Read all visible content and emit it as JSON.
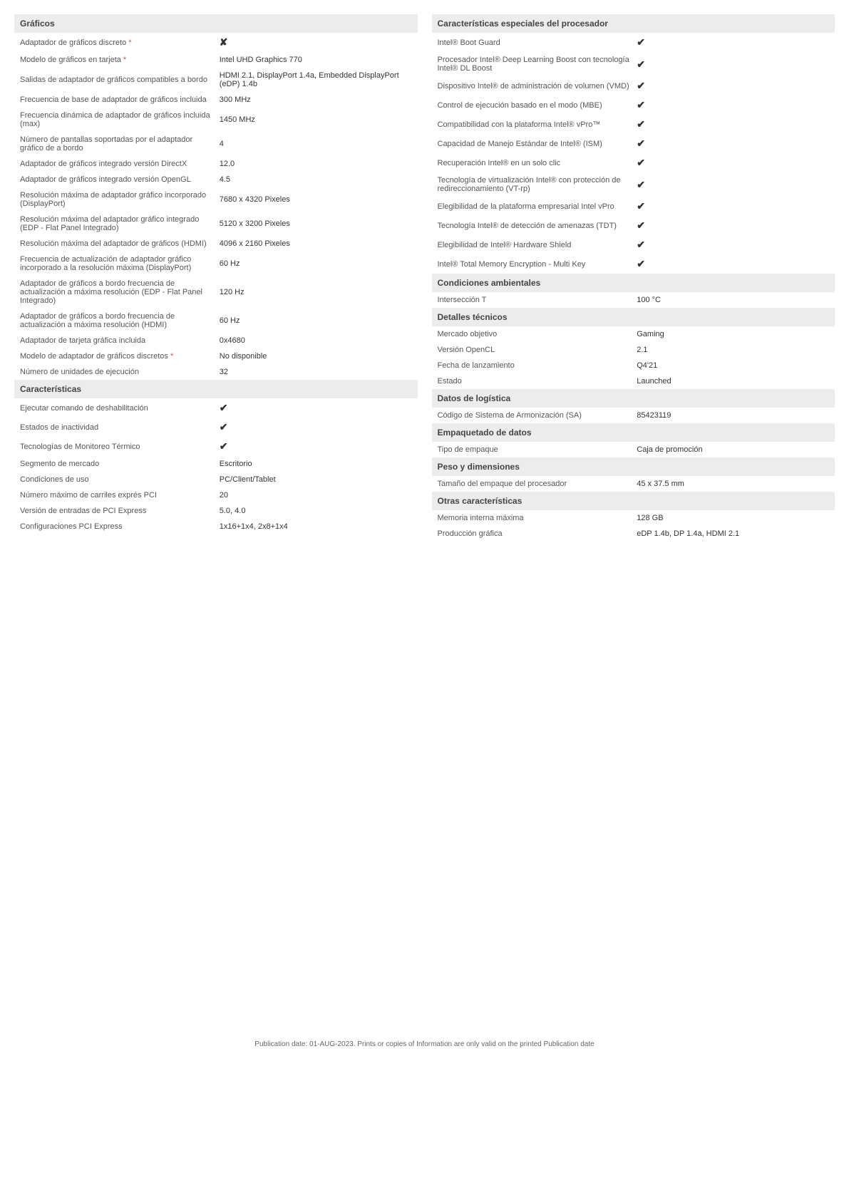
{
  "graficos": {
    "header": "Gráficos",
    "rows": [
      {
        "label": "Adaptador de gráficos discreto ",
        "asterisk": "*",
        "value": "✘",
        "vclass": "cross"
      },
      {
        "label": "Modelo de gráficos en tarjeta ",
        "asterisk": "*",
        "value": "Intel UHD Graphics 770"
      },
      {
        "label": "Salidas de adaptador de gráficos compatibles a bordo",
        "value": "HDMI 2.1, DisplayPort 1.4a, Embedded DisplayPort (eDP) 1.4b"
      },
      {
        "label": "Frecuencia de base de adaptador de gráficos incluida",
        "value": "300 MHz"
      },
      {
        "label": "Frecuencia dinámica de adaptador de gráficos incluida (max)",
        "value": "1450 MHz"
      },
      {
        "label": "Número de pantallas soportadas por el adaptador gráfico de a bordo",
        "value": "4"
      },
      {
        "label": "Adaptador de gráficos integrado versión DirectX",
        "value": "12.0"
      },
      {
        "label": "Adaptador de gráficos integrado versión OpenGL",
        "value": "4.5"
      },
      {
        "label": "Resolución máxima de adaptador gráfico incorporado (DisplayPort)",
        "value": "7680 x 4320 Pixeles"
      },
      {
        "label": "Resolución máxima del adaptador gráfico integrado (EDP - Flat Panel Integrado)",
        "value": "5120 x 3200 Pixeles"
      },
      {
        "label": "Resolución máxima del adaptador de gráficos (HDMI)",
        "value": "4096 x 2160 Pixeles"
      },
      {
        "label": "Frecuencia de actualización de adaptador gráfico incorporado a la resolución máxima (DisplayPort)",
        "value": "60 Hz"
      },
      {
        "label": "Adaptador de gráficos a bordo frecuencia de actualización a máxima resolución (EDP - Flat Panel Integrado)",
        "value": "120 Hz"
      },
      {
        "label": "Adaptador de gráficos a bordo frecuencia de actualización a máxima resolución (HDMI)",
        "value": "60 Hz"
      },
      {
        "label": "Adaptador de tarjeta gráfica incluida",
        "value": "0x4680"
      },
      {
        "label": "Modelo de adaptador de gráficos discretos ",
        "asterisk": "*",
        "value": "No disponible"
      },
      {
        "label": "Número de unidades de ejecución",
        "value": "32"
      }
    ]
  },
  "caracteristicas": {
    "header": "Características",
    "rows": [
      {
        "label": "Ejecutar comando de deshabilitación",
        "value": "✔",
        "vclass": "check"
      },
      {
        "label": "Estados de inactividad",
        "value": "✔",
        "vclass": "check"
      },
      {
        "label": "Tecnologías de Monitoreo Térmico",
        "value": "✔",
        "vclass": "check"
      },
      {
        "label": "Segmento de mercado",
        "value": "Escritorio"
      },
      {
        "label": "Condiciones de uso",
        "value": "PC/Client/Tablet"
      },
      {
        "label": "Número máximo de carriles exprés PCI",
        "value": "20"
      },
      {
        "label": "Versión de entradas de PCI Express",
        "value": "5.0, 4.0"
      },
      {
        "label": "Configuraciones PCI Express",
        "value": "1x16+1x4, 2x8+1x4"
      }
    ]
  },
  "especiales": {
    "header": "Características especiales del procesador",
    "rows": [
      {
        "label": "Intel® Boot Guard",
        "value": "✔",
        "vclass": "check"
      },
      {
        "label": "Procesador Intel® Deep Learning Boost con tecnología Intel® DL Boost",
        "value": "✔",
        "vclass": "check"
      },
      {
        "label": "Dispositivo Intel® de administración de volumen (VMD)",
        "value": "✔",
        "vclass": "check"
      },
      {
        "label": "Control de ejecución basado en el modo (MBE)",
        "value": "✔",
        "vclass": "check"
      },
      {
        "label": "Compatibilidad con la plataforma Intel® vPro™",
        "value": "✔",
        "vclass": "check"
      },
      {
        "label": "Capacidad de Manejo Estándar de Intel® (ISM)",
        "value": "✔",
        "vclass": "check"
      },
      {
        "label": "Recuperación Intel® en un solo clic",
        "value": "✔",
        "vclass": "check"
      },
      {
        "label": "Tecnología de virtualización Intel® con protección de redireccionamiento (VT-rp)",
        "value": "✔",
        "vclass": "check"
      },
      {
        "label": "Elegibilidad de la plataforma empresarial Intel vPro",
        "value": "✔",
        "vclass": "check"
      },
      {
        "label": "Tecnología Intel® de detección de amenazas (TDT)",
        "value": "✔",
        "vclass": "check"
      },
      {
        "label": "Elegibilidad de Intel® Hardware Shield",
        "value": "✔",
        "vclass": "check"
      },
      {
        "label": "Intel® Total Memory Encryption - Multi Key",
        "value": "✔",
        "vclass": "check"
      }
    ]
  },
  "ambientales": {
    "header": "Condiciones ambientales",
    "rows": [
      {
        "label": "Intersección T",
        "value": "100 °C"
      }
    ]
  },
  "tecnicos": {
    "header": "Detalles técnicos",
    "rows": [
      {
        "label": "Mercado objetivo",
        "value": "Gaming"
      },
      {
        "label": "Versión OpenCL",
        "value": "2.1"
      },
      {
        "label": "Fecha de lanzamiento",
        "value": "Q4'21"
      },
      {
        "label": "Estado",
        "value": "Launched"
      }
    ]
  },
  "logistica": {
    "header": "Datos de logística",
    "rows": [
      {
        "label": "Código de Sistema de Armonización (SA)",
        "value": "85423119"
      }
    ]
  },
  "empaquetado": {
    "header": "Empaquetado de datos",
    "rows": [
      {
        "label": "Tipo de empaque",
        "value": "Caja de promoción"
      }
    ]
  },
  "peso": {
    "header": "Peso y dimensiones",
    "rows": [
      {
        "label": "Tamaño del empaque del procesador",
        "value": "45 x 37.5 mm"
      }
    ]
  },
  "otras": {
    "header": "Otras características",
    "rows": [
      {
        "label": "Memoria interna máxima",
        "value": "128 GB"
      },
      {
        "label": "Producción gráfica",
        "value": "eDP 1.4b, DP 1.4a, HDMI 2.1"
      }
    ]
  },
  "footer": "Publication date: 01-AUG-2023. Prints or copies of Information are only valid on the printed Publication date"
}
